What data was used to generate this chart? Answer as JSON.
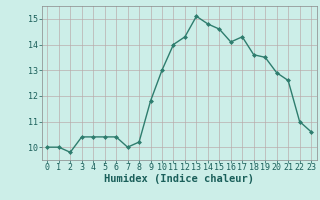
{
  "x": [
    0,
    1,
    2,
    3,
    4,
    5,
    6,
    7,
    8,
    9,
    10,
    11,
    12,
    13,
    14,
    15,
    16,
    17,
    18,
    19,
    20,
    21,
    22,
    23
  ],
  "y": [
    10.0,
    10.0,
    9.8,
    10.4,
    10.4,
    10.4,
    10.4,
    10.0,
    10.2,
    11.8,
    13.0,
    14.0,
    14.3,
    15.1,
    14.8,
    14.6,
    14.1,
    14.3,
    13.6,
    13.5,
    12.9,
    12.6,
    11.0,
    10.6
  ],
  "line_color": "#2e7d6e",
  "marker": "D",
  "marker_size": 2.0,
  "bg_color": "#cceee8",
  "grid_color": "#b8a8a8",
  "xlabel": "Humidex (Indice chaleur)",
  "ylim": [
    9.5,
    15.5
  ],
  "xlim": [
    -0.5,
    23.5
  ],
  "yticks": [
    10,
    11,
    12,
    13,
    14,
    15
  ],
  "xticks": [
    0,
    1,
    2,
    3,
    4,
    5,
    6,
    7,
    8,
    9,
    10,
    11,
    12,
    13,
    14,
    15,
    16,
    17,
    18,
    19,
    20,
    21,
    22,
    23
  ],
  "tick_fontsize": 6.0,
  "xlabel_fontsize": 7.5,
  "tick_color": "#1a5f5a",
  "line_width": 1.0
}
